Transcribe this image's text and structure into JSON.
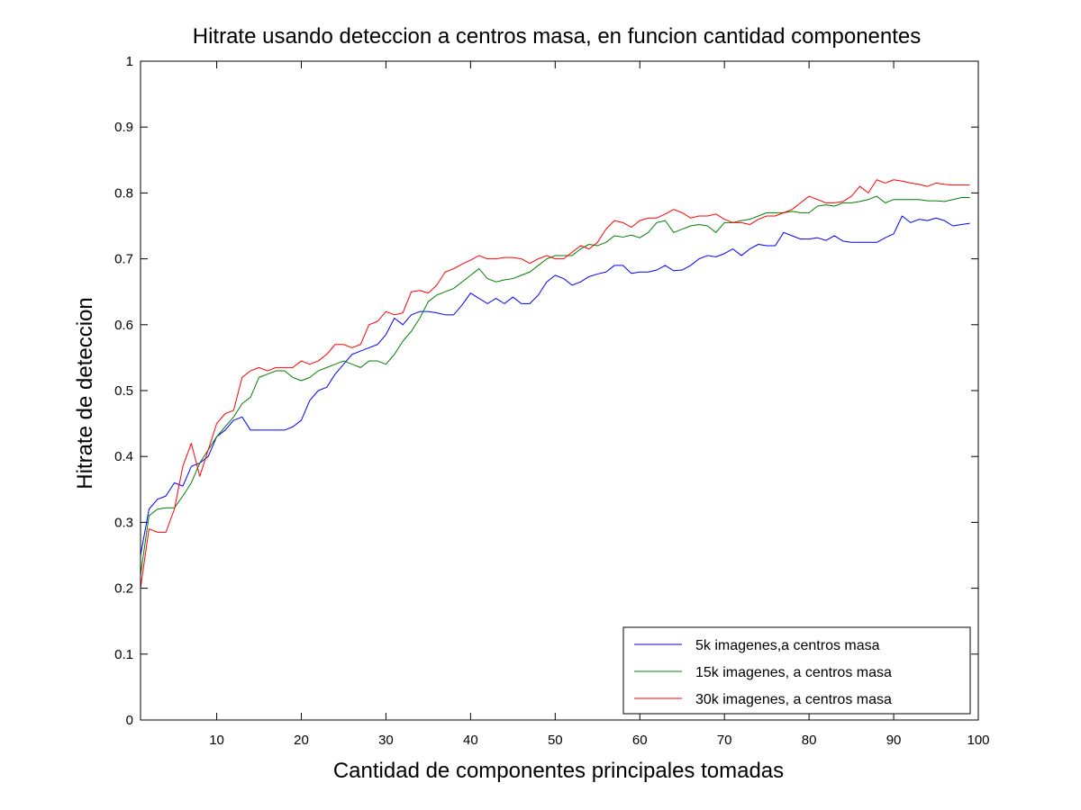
{
  "chart_data": {
    "type": "line",
    "title": "Hitrate usando deteccion a centros masa, en funcion cantidad componentes",
    "xlabel": "Cantidad de componentes principales tomadas",
    "ylabel": "Hitrate de deteccion",
    "xlim": [
      1,
      100
    ],
    "ylim": [
      0,
      1
    ],
    "xticks": [
      10,
      20,
      30,
      40,
      50,
      60,
      70,
      80,
      90,
      100
    ],
    "yticks": [
      0,
      0.1,
      0.2,
      0.3,
      0.4,
      0.5,
      0.6,
      0.7,
      0.8,
      0.9,
      1
    ],
    "grid": false,
    "legend_position": "bottom-right",
    "series": [
      {
        "name": "5k imagenes,a centros masa",
        "color": "#0000ff",
        "x": [
          1,
          2,
          3,
          4,
          5,
          6,
          7,
          8,
          9,
          10,
          11,
          12,
          13,
          14,
          15,
          16,
          17,
          18,
          19,
          20,
          21,
          22,
          23,
          24,
          25,
          26,
          27,
          28,
          29,
          30,
          31,
          32,
          33,
          34,
          35,
          36,
          37,
          38,
          39,
          40,
          41,
          42,
          43,
          44,
          45,
          46,
          47,
          48,
          49,
          50,
          51,
          52,
          53,
          54,
          55,
          56,
          57,
          58,
          59,
          60,
          61,
          62,
          63,
          64,
          65,
          66,
          67,
          68,
          69,
          70,
          71,
          72,
          73,
          74,
          75,
          76,
          77,
          78,
          79,
          80,
          81,
          82,
          83,
          84,
          85,
          86,
          87,
          88,
          89,
          90,
          91,
          92,
          93,
          94,
          95,
          96,
          97,
          98,
          99
        ],
        "y": [
          0.25,
          0.32,
          0.335,
          0.34,
          0.36,
          0.355,
          0.385,
          0.39,
          0.4,
          0.43,
          0.44,
          0.455,
          0.46,
          0.44,
          0.44,
          0.44,
          0.44,
          0.44,
          0.445,
          0.455,
          0.485,
          0.5,
          0.505,
          0.525,
          0.54,
          0.555,
          0.56,
          0.565,
          0.57,
          0.585,
          0.61,
          0.6,
          0.615,
          0.62,
          0.62,
          0.618,
          0.615,
          0.615,
          0.63,
          0.648,
          0.64,
          0.632,
          0.64,
          0.632,
          0.642,
          0.632,
          0.632,
          0.645,
          0.665,
          0.675,
          0.67,
          0.66,
          0.665,
          0.673,
          0.677,
          0.68,
          0.69,
          0.69,
          0.678,
          0.68,
          0.68,
          0.683,
          0.69,
          0.682,
          0.683,
          0.69,
          0.7,
          0.705,
          0.703,
          0.708,
          0.715,
          0.705,
          0.715,
          0.722,
          0.72,
          0.72,
          0.74,
          0.735,
          0.73,
          0.73,
          0.732,
          0.728,
          0.735,
          0.727,
          0.725,
          0.725,
          0.725,
          0.725,
          0.732,
          0.738,
          0.765,
          0.755,
          0.76,
          0.758,
          0.762,
          0.758,
          0.75,
          0.752,
          0.754
        ]
      },
      {
        "name": "15k imagenes, a centros masa",
        "color": "#008000",
        "x": [
          1,
          2,
          3,
          4,
          5,
          6,
          7,
          8,
          9,
          10,
          11,
          12,
          13,
          14,
          15,
          16,
          17,
          18,
          19,
          20,
          21,
          22,
          23,
          24,
          25,
          26,
          27,
          28,
          29,
          30,
          31,
          32,
          33,
          34,
          35,
          36,
          37,
          38,
          39,
          40,
          41,
          42,
          43,
          44,
          45,
          46,
          47,
          48,
          49,
          50,
          51,
          52,
          53,
          54,
          55,
          56,
          57,
          58,
          59,
          60,
          61,
          62,
          63,
          64,
          65,
          66,
          67,
          68,
          69,
          70,
          71,
          72,
          73,
          74,
          75,
          76,
          77,
          78,
          79,
          80,
          81,
          82,
          83,
          84,
          85,
          86,
          87,
          88,
          89,
          90,
          91,
          92,
          93,
          94,
          95,
          96,
          97,
          98,
          99
        ],
        "y": [
          0.22,
          0.31,
          0.32,
          0.322,
          0.322,
          0.34,
          0.36,
          0.39,
          0.41,
          0.43,
          0.445,
          0.46,
          0.48,
          0.49,
          0.52,
          0.525,
          0.53,
          0.53,
          0.52,
          0.515,
          0.52,
          0.53,
          0.535,
          0.54,
          0.545,
          0.54,
          0.535,
          0.545,
          0.545,
          0.54,
          0.555,
          0.575,
          0.59,
          0.61,
          0.635,
          0.645,
          0.65,
          0.655,
          0.665,
          0.675,
          0.685,
          0.67,
          0.665,
          0.668,
          0.67,
          0.675,
          0.68,
          0.69,
          0.7,
          0.705,
          0.705,
          0.705,
          0.715,
          0.722,
          0.72,
          0.725,
          0.735,
          0.733,
          0.736,
          0.732,
          0.74,
          0.755,
          0.758,
          0.74,
          0.745,
          0.75,
          0.752,
          0.75,
          0.74,
          0.755,
          0.755,
          0.758,
          0.76,
          0.765,
          0.77,
          0.77,
          0.77,
          0.772,
          0.77,
          0.77,
          0.78,
          0.782,
          0.78,
          0.785,
          0.785,
          0.787,
          0.79,
          0.795,
          0.785,
          0.79,
          0.79,
          0.79,
          0.79,
          0.788,
          0.788,
          0.787,
          0.79,
          0.793,
          0.793
        ]
      },
      {
        "name": "30k imagenes, a centros masa",
        "color": "#ff0000",
        "x": [
          1,
          2,
          3,
          4,
          5,
          6,
          7,
          8,
          9,
          10,
          11,
          12,
          13,
          14,
          15,
          16,
          17,
          18,
          19,
          20,
          21,
          22,
          23,
          24,
          25,
          26,
          27,
          28,
          29,
          30,
          31,
          32,
          33,
          34,
          35,
          36,
          37,
          38,
          39,
          40,
          41,
          42,
          43,
          44,
          45,
          46,
          47,
          48,
          49,
          50,
          51,
          52,
          53,
          54,
          55,
          56,
          57,
          58,
          59,
          60,
          61,
          62,
          63,
          64,
          65,
          66,
          67,
          68,
          69,
          70,
          71,
          72,
          73,
          74,
          75,
          76,
          77,
          78,
          79,
          80,
          81,
          82,
          83,
          84,
          85,
          86,
          87,
          88,
          89,
          90,
          91,
          92,
          93,
          94,
          95,
          96,
          97,
          98,
          99
        ],
        "y": [
          0.2,
          0.29,
          0.285,
          0.285,
          0.32,
          0.385,
          0.42,
          0.37,
          0.41,
          0.45,
          0.465,
          0.47,
          0.52,
          0.53,
          0.535,
          0.53,
          0.535,
          0.535,
          0.535,
          0.545,
          0.54,
          0.545,
          0.555,
          0.57,
          0.57,
          0.565,
          0.57,
          0.6,
          0.605,
          0.62,
          0.615,
          0.618,
          0.65,
          0.652,
          0.648,
          0.66,
          0.68,
          0.685,
          0.692,
          0.698,
          0.705,
          0.7,
          0.7,
          0.702,
          0.702,
          0.7,
          0.693,
          0.7,
          0.705,
          0.7,
          0.7,
          0.71,
          0.72,
          0.715,
          0.725,
          0.745,
          0.758,
          0.755,
          0.748,
          0.758,
          0.762,
          0.762,
          0.768,
          0.775,
          0.77,
          0.762,
          0.765,
          0.765,
          0.768,
          0.76,
          0.755,
          0.755,
          0.752,
          0.76,
          0.765,
          0.765,
          0.77,
          0.775,
          0.785,
          0.795,
          0.79,
          0.785,
          0.785,
          0.787,
          0.795,
          0.81,
          0.8,
          0.82,
          0.815,
          0.82,
          0.818,
          0.815,
          0.813,
          0.81,
          0.815,
          0.813,
          0.812,
          0.812,
          0.812
        ]
      }
    ]
  }
}
